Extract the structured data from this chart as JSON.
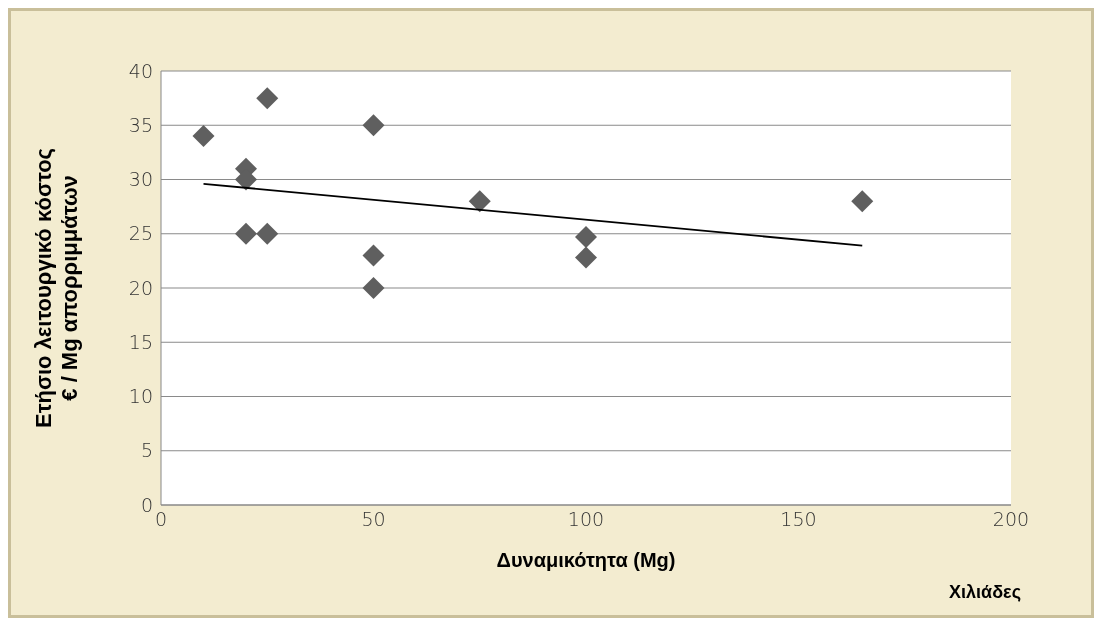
{
  "chart_data": {
    "type": "scatter",
    "xlabel": "Δυναμικότητα (Mg)",
    "ylabel": "Ετήσιο λειτουργικό κόστος\n€ / Mg απορριμμάτων",
    "annotations": [
      "Χιλιάδες"
    ],
    "xlim": [
      0,
      200
    ],
    "xticks": [
      0,
      50,
      100,
      150,
      200
    ],
    "ylim": [
      0,
      40
    ],
    "yticks": [
      0,
      5,
      10,
      15,
      20,
      25,
      30,
      35,
      40
    ],
    "grid": "y",
    "legend": false,
    "series": [
      {
        "color": "#5f5f5f",
        "marker": "diamond",
        "x": [
          10,
          20,
          20,
          20,
          25,
          25,
          50,
          50,
          50,
          75,
          100,
          100,
          165
        ],
        "values": [
          34,
          31,
          30,
          25,
          37.5,
          25,
          35,
          23,
          20,
          28,
          24.7,
          22.8,
          28
        ]
      },
      {
        "type": "line",
        "color": "#000000",
        "marker": "none",
        "line_style": "solid",
        "x": [
          10,
          165
        ],
        "values": [
          29.6,
          23.9
        ]
      }
    ]
  }
}
